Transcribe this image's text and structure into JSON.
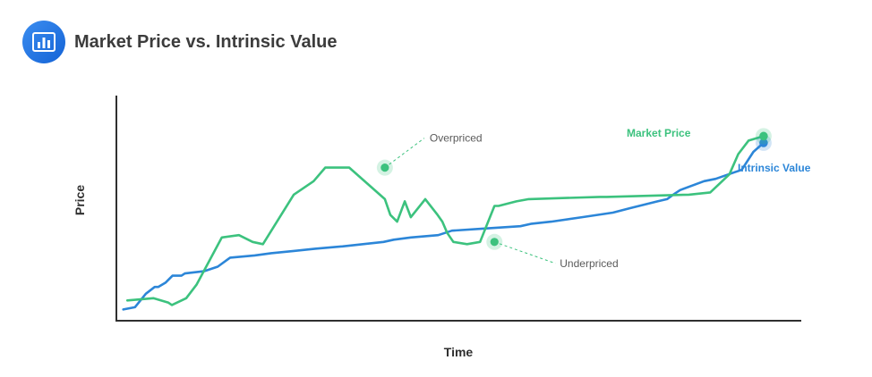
{
  "header": {
    "title": "Market Price vs. Intrinsic Value",
    "icon": "bar-chart-icon"
  },
  "colors": {
    "market": "#3cc27e",
    "intrinsic": "#2c86d8",
    "axis": "#2f2f2f",
    "brand": "#1f6fe0"
  },
  "chart_data": {
    "type": "line",
    "xlabel": "Time",
    "ylabel": "Price",
    "xlim": [
      0,
      100
    ],
    "ylim": [
      0,
      100
    ],
    "grid": false,
    "x_ticks_shown": false,
    "y_ticks_shown": false,
    "series": [
      {
        "name": "Market Price",
        "key": "market",
        "x": [
          1.6,
          5.4,
          7.6,
          8.1,
          10.2,
          11.7,
          15.4,
          17.9,
          19.9,
          21.4,
          25.9,
          28.8,
          30.5,
          34.0,
          39.2,
          40.0,
          41.0,
          42.1,
          43.0,
          45.1,
          46.9,
          47.6,
          48.3,
          49.2,
          51.2,
          53.1,
          55.2,
          55.8,
          58.4,
          60.2,
          70.6,
          71.6,
          83.6,
          86.7,
          89.5,
          90.8,
          92.3,
          94.5
        ],
        "y": [
          9,
          10,
          8,
          7,
          10,
          16,
          37,
          38,
          35,
          34,
          56,
          62,
          68,
          68,
          54,
          47,
          44,
          53,
          46,
          54,
          47,
          44,
          39,
          35,
          34,
          35,
          51,
          51,
          53,
          54,
          55,
          55,
          56,
          57,
          65,
          74,
          80,
          82
        ]
      },
      {
        "name": "Intrinsic Value",
        "key": "intrinsic",
        "x": [
          1.0,
          2.7,
          4.3,
          5.6,
          6.1,
          7.2,
          8.2,
          9.5,
          10.0,
          12.8,
          14.8,
          16.6,
          20.2,
          22.6,
          25.9,
          29.0,
          33.0,
          36.0,
          39.0,
          40.5,
          43.0,
          47.0,
          49.0,
          54.0,
          59.0,
          60.5,
          63.5,
          68.0,
          72.5,
          75.0,
          79.0,
          80.4,
          81.3,
          82.3,
          85.8,
          87.5,
          90.3,
          91.3,
          93.0,
          94.5
        ],
        "y": [
          5,
          6,
          12,
          15,
          15,
          17,
          20,
          20,
          21,
          22,
          24,
          28,
          29,
          30,
          31,
          32,
          33,
          34,
          35,
          36,
          37,
          38,
          40,
          41,
          42,
          43,
          44,
          46,
          48,
          50,
          53,
          54,
          56,
          58,
          62,
          63,
          66,
          67,
          75,
          79
        ]
      }
    ],
    "annotations": [
      {
        "label": "Overpriced",
        "series": "market",
        "x": 39.2,
        "y": 68
      },
      {
        "label": "Underpriced",
        "series": "market",
        "x": 55.2,
        "y": 35
      }
    ],
    "series_labels": {
      "market": "Market Price",
      "intrinsic": "Intrinsic Value"
    }
  }
}
